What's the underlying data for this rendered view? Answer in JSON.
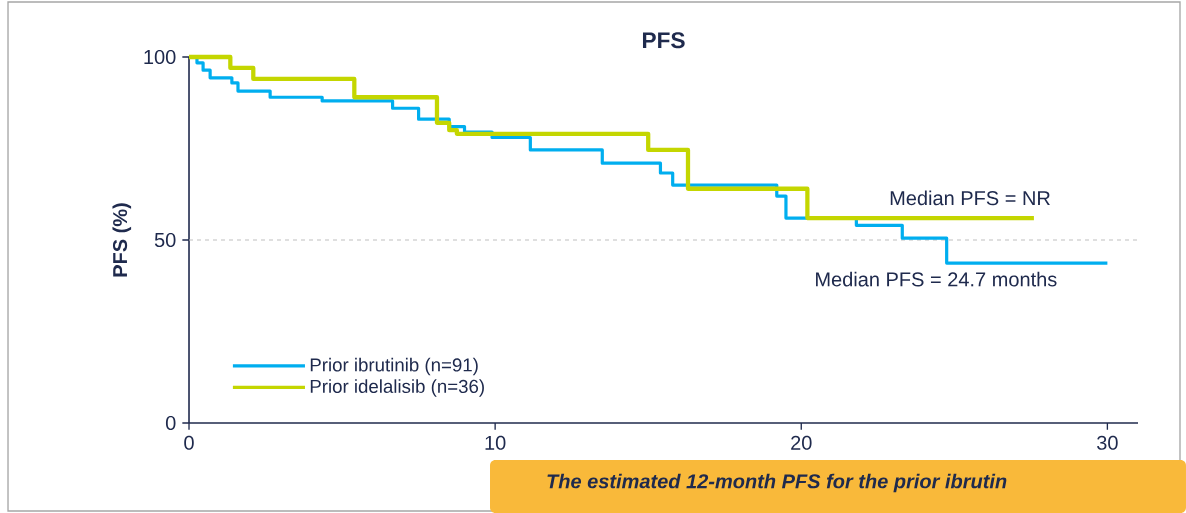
{
  "chart_data": {
    "type": "step",
    "title": "PFS",
    "ylabel": "PFS (%)",
    "xlim": [
      0,
      31
    ],
    "ylim": [
      0,
      100
    ],
    "xticks": [
      0,
      10,
      20,
      30
    ],
    "yticks": [
      0,
      50,
      100
    ],
    "series": [
      {
        "name": "Prior ibrutinib (n=91)",
        "color": "#00aeef",
        "x": [
          0,
          0.26,
          0.46,
          0.69,
          1.4,
          1.6,
          2.65,
          4.35,
          6.65,
          7.5,
          8.5,
          9.0,
          9.9,
          11.15,
          13.5,
          15.4,
          15.8,
          19.2,
          19.5,
          21.8,
          23.3,
          24.75,
          30
        ],
        "values": [
          100,
          98.4,
          96.4,
          94.3,
          92.9,
          90.7,
          89,
          88,
          86,
          83,
          81,
          79.5,
          78,
          74.6,
          71,
          68.3,
          65,
          62,
          56,
          54,
          50.5,
          43.7,
          43.7
        ]
      },
      {
        "name": "Prior idelalisib (n=36)",
        "color": "#c4d600",
        "x": [
          0,
          1.35,
          2.1,
          5.4,
          8.1,
          8.5,
          8.75,
          15.0,
          16.3,
          20.2,
          27.6
        ],
        "values": [
          100,
          97,
          94,
          89,
          82,
          80,
          79,
          74.6,
          64,
          56,
          56
        ]
      }
    ],
    "ref_lines": [
      {
        "axis": "y",
        "value": 50,
        "color": "#bfbfbf",
        "line_style": "dashed"
      }
    ],
    "legend": "bottom left",
    "annotations": [
      "Median PFS = NR",
      "Median PFS = 24.7 months",
      "The estimated 12-month PFS for the prior ibrutin"
    ]
  }
}
